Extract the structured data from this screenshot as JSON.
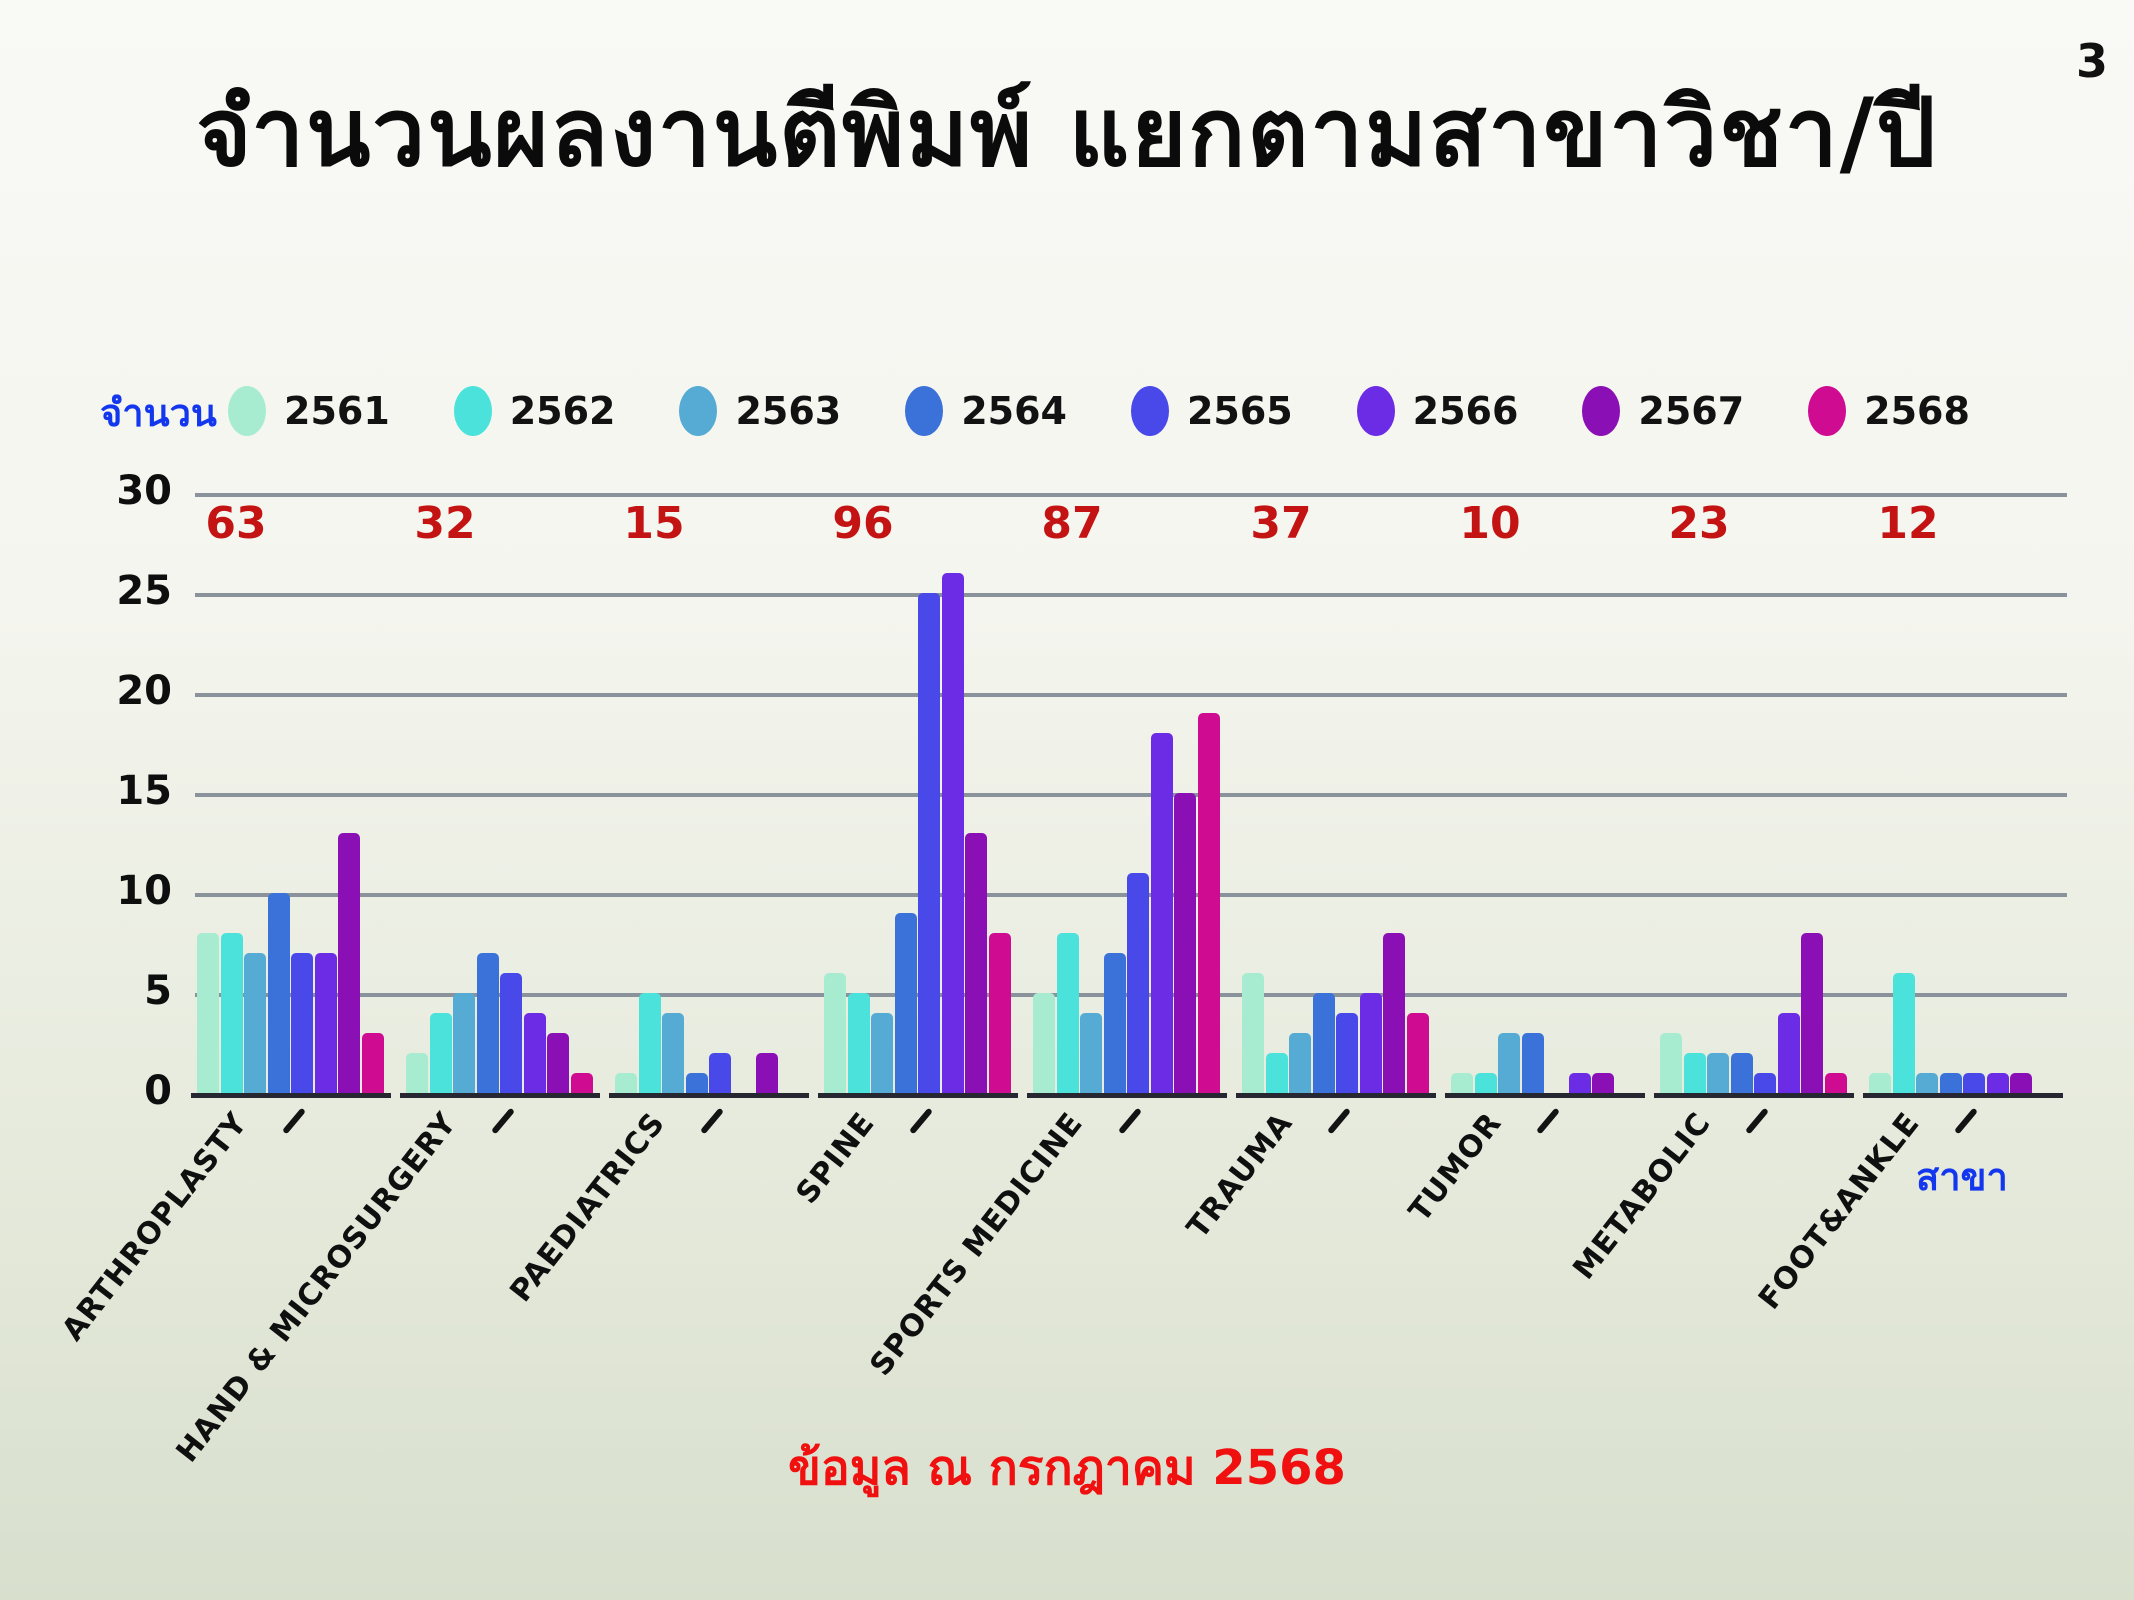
{
  "page": {
    "number": "3",
    "title": "จำนวนผลงานตีพิมพ์ แยกตามสาขาวิชา/ปี",
    "footer": "ข้อมูล ณ กรกฎาคม 2568"
  },
  "chart_data": {
    "type": "bar",
    "title": "จำนวนผลงานตีพิมพ์ แยกตามสาขาวิชา/ปี",
    "ylabel": "จำนวน",
    "xlabel": "สาขา",
    "ylim": [
      0,
      30
    ],
    "yticks": [
      0,
      5,
      10,
      15,
      20,
      25,
      30
    ],
    "grid": "horizontal",
    "legend_position": "top",
    "categories": [
      "ARTHROPLASTY",
      "HAND & MICROSURGERY",
      "PAEDIATRICS",
      "SPINE",
      "SPORTS MEDICINE",
      "TRAUMA",
      "TUMOR",
      "METABOLIC",
      "FOOT&ANKLE"
    ],
    "group_totals": [
      63,
      32,
      15,
      96,
      87,
      37,
      10,
      23,
      12
    ],
    "series": [
      {
        "name": "2561",
        "color": "#a7ecd0",
        "values": [
          8,
          2,
          1,
          6,
          5,
          6,
          1,
          3,
          1
        ]
      },
      {
        "name": "2562",
        "color": "#4ae2da",
        "values": [
          8,
          4,
          5,
          5,
          8,
          2,
          1,
          2,
          6
        ]
      },
      {
        "name": "2563",
        "color": "#55abd3",
        "values": [
          7,
          5,
          4,
          4,
          4,
          3,
          3,
          2,
          1
        ]
      },
      {
        "name": "2564",
        "color": "#3b72da",
        "values": [
          10,
          7,
          1,
          9,
          7,
          5,
          3,
          2,
          1
        ]
      },
      {
        "name": "2565",
        "color": "#4949e9",
        "values": [
          7,
          6,
          2,
          25,
          11,
          4,
          0,
          1,
          1
        ]
      },
      {
        "name": "2566",
        "color": "#6c2be4",
        "values": [
          7,
          4,
          0,
          26,
          18,
          5,
          1,
          4,
          1
        ]
      },
      {
        "name": "2567",
        "color": "#8a10b5",
        "values": [
          13,
          3,
          2,
          13,
          15,
          8,
          1,
          8,
          1
        ]
      },
      {
        "name": "2568",
        "color": "#cf0b92",
        "values": [
          3,
          1,
          0,
          8,
          19,
          4,
          0,
          1,
          0
        ]
      }
    ],
    "totals_color": "#c41313",
    "axis_label_color": "#1337ee",
    "footer_color": "#f01010"
  }
}
